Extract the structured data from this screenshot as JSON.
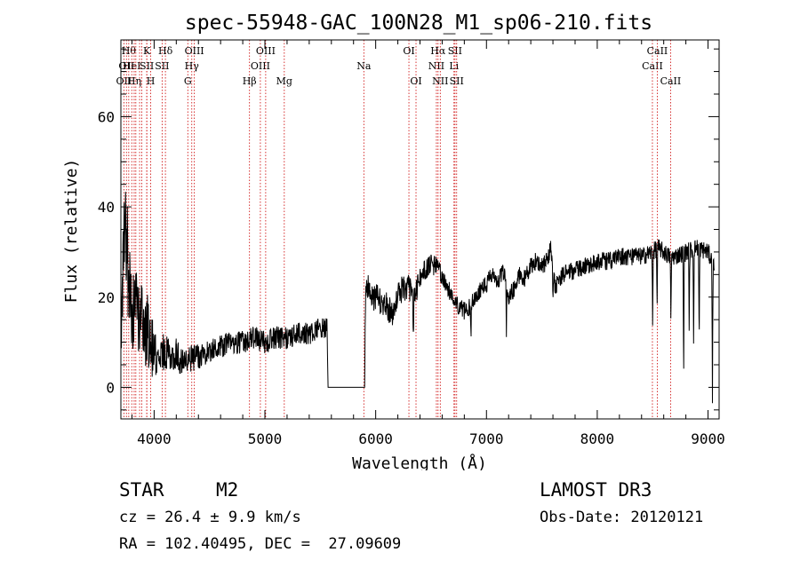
{
  "chart_data": {
    "type": "line",
    "title": "spec-55948-GAC_100N28_M1_sp06-210.fits",
    "xlabel": "Wavelength (Å)",
    "ylabel": "Flux (relative)",
    "xlim": [
      3700,
      9100
    ],
    "ylim": [
      -7,
      77
    ],
    "xticks": [
      4000,
      5000,
      6000,
      7000,
      8000,
      9000
    ],
    "yticks": [
      0,
      20,
      40,
      60
    ],
    "grid": false,
    "line_color": "#000000",
    "marker_color": "#cc0000",
    "continuum": {
      "x": [
        3700,
        3720,
        3740,
        3760,
        3780,
        3800,
        3820,
        3840,
        3860,
        3880,
        3900,
        3920,
        3940,
        3960,
        3980,
        4000,
        4050,
        4100,
        4150,
        4200,
        4250,
        4300,
        4400,
        4500,
        4600,
        4700,
        4800,
        4900,
        5000,
        5100,
        5200,
        5300,
        5400,
        5500,
        5560,
        5570,
        5900,
        5910,
        5930,
        5960,
        6000,
        6050,
        6100,
        6150,
        6200,
        6250,
        6300,
        6320,
        6350,
        6400,
        6450,
        6500,
        6550,
        6580,
        6600,
        6650,
        6700,
        6720,
        6750,
        6800,
        6850,
        6900,
        6950,
        7000,
        7050,
        7100,
        7150,
        7200,
        7250,
        7300,
        7350,
        7400,
        7450,
        7500,
        7550,
        7580,
        7620,
        7650,
        7700,
        7800,
        7900,
        8000,
        8100,
        8200,
        8300,
        8400,
        8500,
        8550,
        8600,
        8650,
        8700,
        8800,
        8900,
        9000,
        9050
      ],
      "y": [
        12,
        30,
        38,
        28,
        22,
        18,
        16,
        20,
        15,
        17,
        14,
        12,
        13,
        10,
        9,
        8,
        7,
        8,
        8,
        7,
        6,
        6,
        7,
        8,
        9,
        10,
        10,
        11,
        10,
        11,
        11,
        12,
        12,
        13,
        13,
        0,
        0,
        23,
        22,
        20,
        20,
        19,
        18,
        16,
        21,
        22,
        22,
        21,
        20,
        24,
        26,
        27,
        27,
        26,
        24,
        22,
        20,
        19,
        18,
        17,
        18,
        20,
        22,
        23,
        25,
        23,
        26,
        20,
        22,
        25,
        24,
        27,
        28,
        27,
        28,
        31,
        22,
        24,
        25,
        26,
        27,
        28,
        28,
        29,
        29,
        29,
        30,
        31,
        30,
        29,
        29,
        30,
        31,
        30,
        27
      ],
      "noise": [
        12,
        12,
        12,
        12,
        12,
        10,
        10,
        9,
        9,
        9,
        8,
        8,
        8,
        7,
        7,
        6,
        5,
        4,
        4,
        4,
        3,
        3,
        3,
        2.5,
        2.5,
        2.5,
        2.5,
        2.5,
        2.5,
        2.5,
        2.5,
        2.5,
        2.5,
        2.5,
        2.5,
        0,
        0,
        3,
        3,
        3,
        3,
        3,
        3,
        3,
        3,
        3,
        3,
        3,
        3,
        2.5,
        2.5,
        2.5,
        2,
        2,
        2,
        2,
        2,
        2,
        2,
        2,
        2,
        2,
        2,
        2,
        2,
        2,
        2,
        2,
        2,
        2,
        2,
        2,
        2,
        2,
        2,
        2,
        2,
        2,
        2,
        2,
        2,
        2,
        2,
        2,
        2,
        2,
        2,
        2,
        2,
        2,
        2,
        2,
        2,
        2,
        2
      ]
    },
    "absorption_spikes": [
      {
        "x": 6340,
        "depth": 8
      },
      {
        "x": 6860,
        "depth": 7
      },
      {
        "x": 7180,
        "depth": 10
      },
      {
        "x": 7600,
        "depth": 8
      },
      {
        "x": 8500,
        "depth": 15
      },
      {
        "x": 8540,
        "depth": 12
      },
      {
        "x": 8665,
        "depth": 15
      },
      {
        "x": 8780,
        "depth": 28
      },
      {
        "x": 8830,
        "depth": 18
      },
      {
        "x": 8870,
        "depth": 20
      },
      {
        "x": 8920,
        "depth": 22
      },
      {
        "x": 9040,
        "depth": 30
      }
    ],
    "line_markers": [
      {
        "x": 3727,
        "label": "OII",
        "row": 2
      },
      {
        "x": 3750,
        "label": "OII",
        "row": 1
      },
      {
        "x": 3771,
        "label": "Hθ",
        "row": 0
      },
      {
        "x": 3798,
        "label": "HeI",
        "row": 1
      },
      {
        "x": 3820,
        "label": "Hη",
        "row": 2
      },
      {
        "x": 3835,
        "label": "",
        "row": 0
      },
      {
        "x": 3869,
        "label": "",
        "row": 0
      },
      {
        "x": 3889,
        "label": "",
        "row": 0
      },
      {
        "x": 3934,
        "label": "K",
        "row": 0
      },
      {
        "x": 3934,
        "label": "SII",
        "row": 1
      },
      {
        "x": 3969,
        "label": "H",
        "row": 2
      },
      {
        "x": 4102,
        "label": "Hδ",
        "row": 0
      },
      {
        "x": 4072,
        "label": "SII",
        "row": 1
      },
      {
        "x": 4304,
        "label": "G",
        "row": 2
      },
      {
        "x": 4340,
        "label": "Hγ",
        "row": 1
      },
      {
        "x": 4363,
        "label": "OIII",
        "row": 0
      },
      {
        "x": 4861,
        "label": "Hβ",
        "row": 2
      },
      {
        "x": 4959,
        "label": "OIII",
        "row": 1
      },
      {
        "x": 5007,
        "label": "OIII",
        "row": 0
      },
      {
        "x": 5175,
        "label": "Mg",
        "row": 2
      },
      {
        "x": 5893,
        "label": "Na",
        "row": 1
      },
      {
        "x": 6300,
        "label": "OI",
        "row": 0
      },
      {
        "x": 6364,
        "label": "OI",
        "row": 2
      },
      {
        "x": 6548,
        "label": "NII",
        "row": 1
      },
      {
        "x": 6563,
        "label": "Hα",
        "row": 0
      },
      {
        "x": 6583,
        "label": "NII",
        "row": 2
      },
      {
        "x": 6707,
        "label": "Li",
        "row": 1
      },
      {
        "x": 6716,
        "label": "SII",
        "row": 0
      },
      {
        "x": 6731,
        "label": "SII",
        "row": 2
      },
      {
        "x": 8498,
        "label": "CaII",
        "row": 1
      },
      {
        "x": 8542,
        "label": "CaII",
        "row": 0
      },
      {
        "x": 8662,
        "label": "CaII",
        "row": 2
      }
    ]
  },
  "info": {
    "object_class": "STAR",
    "subclass": "M2",
    "survey": "LAMOST DR3",
    "cz_line": "cz = 26.4 ± 9.9 km/s",
    "obs_date": "Obs-Date: 20120121",
    "radec_line": "RA = 102.40495, DEC =  27.09609"
  }
}
